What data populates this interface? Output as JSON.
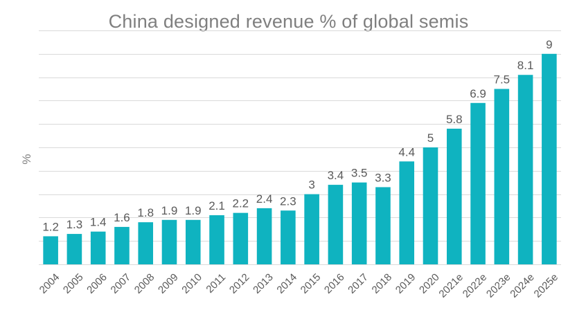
{
  "chart_data": {
    "type": "bar",
    "title": "China designed revenue % of global semis",
    "xlabel": "",
    "ylabel": "%",
    "categories": [
      "2004",
      "2005",
      "2006",
      "2007",
      "2008",
      "2009",
      "2010",
      "2011",
      "2012",
      "2013",
      "2014",
      "2015",
      "2016",
      "2017",
      "2018",
      "2019",
      "2020",
      "2021e",
      "2022e",
      "2023e",
      "2024e",
      "2025e"
    ],
    "values": [
      1.2,
      1.3,
      1.4,
      1.6,
      1.8,
      1.9,
      1.9,
      2.1,
      2.2,
      2.4,
      2.3,
      3,
      3.4,
      3.5,
      3.3,
      4.4,
      5,
      5.8,
      6.9,
      7.5,
      8.1,
      9
    ],
    "ylim": [
      0,
      10
    ],
    "ytick_step": 1,
    "grid": true,
    "data_labels": true,
    "legend": "none",
    "bar_color": "#0fb3c0",
    "gridline_color": "#d9d9d9",
    "text_color": "#595959",
    "title_color": "#7f7f7f"
  }
}
